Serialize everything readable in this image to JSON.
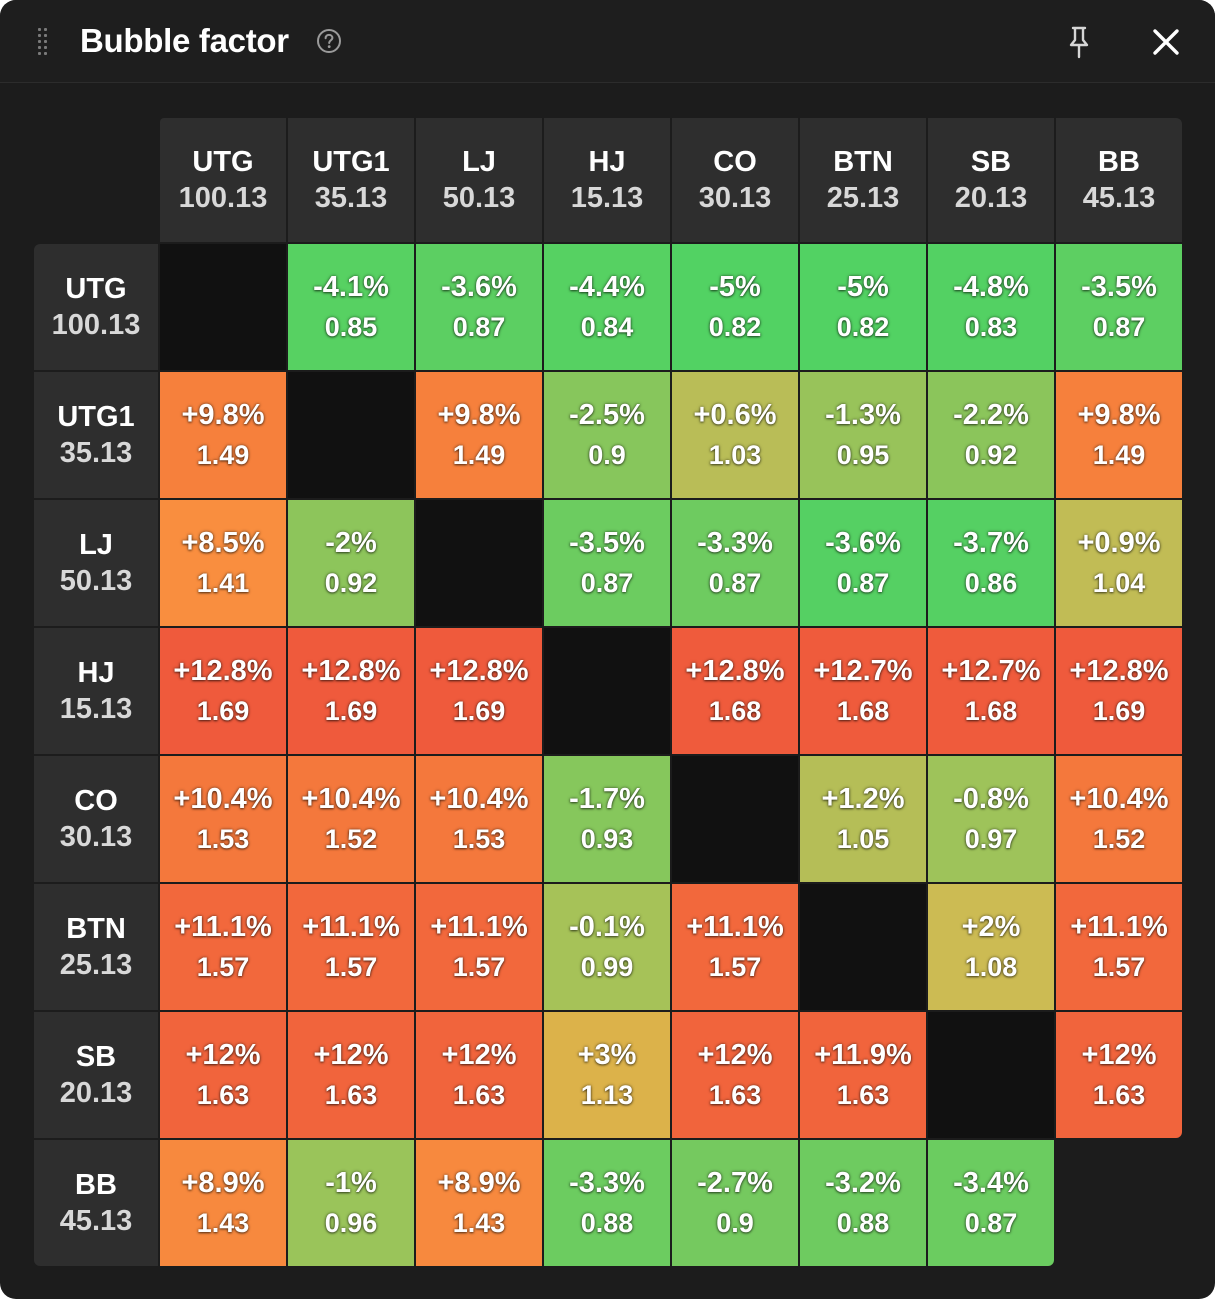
{
  "header": {
    "title": "Bubble factor"
  },
  "columns": [
    {
      "name": "UTG",
      "stack": "100.13"
    },
    {
      "name": "UTG1",
      "stack": "35.13"
    },
    {
      "name": "LJ",
      "stack": "50.13"
    },
    {
      "name": "HJ",
      "stack": "15.13"
    },
    {
      "name": "CO",
      "stack": "30.13"
    },
    {
      "name": "BTN",
      "stack": "25.13"
    },
    {
      "name": "SB",
      "stack": "20.13"
    },
    {
      "name": "BB",
      "stack": "45.13"
    }
  ],
  "rows": [
    {
      "name": "UTG",
      "stack": "100.13",
      "cells": [
        null,
        {
          "pct": "-4.1%",
          "factor": "0.85",
          "color": "#57d162"
        },
        {
          "pct": "-3.6%",
          "factor": "0.87",
          "color": "#5ccf62"
        },
        {
          "pct": "-4.4%",
          "factor": "0.84",
          "color": "#56d162"
        },
        {
          "pct": "-5%",
          "factor": "0.82",
          "color": "#52d263"
        },
        {
          "pct": "-5%",
          "factor": "0.82",
          "color": "#52d263"
        },
        {
          "pct": "-4.8%",
          "factor": "0.83",
          "color": "#53d163"
        },
        {
          "pct": "-3.5%",
          "factor": "0.87",
          "color": "#5dcf62"
        }
      ]
    },
    {
      "name": "UTG1",
      "stack": "35.13",
      "cells": [
        {
          "pct": "+9.8%",
          "factor": "1.49",
          "color": "#f6803c"
        },
        null,
        {
          "pct": "+9.8%",
          "factor": "1.49",
          "color": "#f6803c"
        },
        {
          "pct": "-2.5%",
          "factor": "0.9",
          "color": "#87c65c"
        },
        {
          "pct": "+0.6%",
          "factor": "1.03",
          "color": "#b9bd57"
        },
        {
          "pct": "-1.3%",
          "factor": "0.95",
          "color": "#98c35a"
        },
        {
          "pct": "-2.2%",
          "factor": "0.92",
          "color": "#8bc55b"
        },
        {
          "pct": "+9.8%",
          "factor": "1.49",
          "color": "#f6803c"
        }
      ]
    },
    {
      "name": "LJ",
      "stack": "50.13",
      "cells": [
        {
          "pct": "+8.5%",
          "factor": "1.41",
          "color": "#f98e3f"
        },
        {
          "pct": "-2%",
          "factor": "0.92",
          "color": "#8dc55b"
        },
        null,
        {
          "pct": "-3.5%",
          "factor": "0.87",
          "color": "#6ccc60"
        },
        {
          "pct": "-3.3%",
          "factor": "0.87",
          "color": "#6ecb60"
        },
        {
          "pct": "-3.6%",
          "factor": "0.87",
          "color": "#55d063"
        },
        {
          "pct": "-3.7%",
          "factor": "0.86",
          "color": "#55d063"
        },
        {
          "pct": "+0.9%",
          "factor": "1.04",
          "color": "#c1bc55"
        }
      ]
    },
    {
      "name": "HJ",
      "stack": "15.13",
      "cells": [
        {
          "pct": "+12.8%",
          "factor": "1.69",
          "color": "#ef5a3c"
        },
        {
          "pct": "+12.8%",
          "factor": "1.69",
          "color": "#ef5a3c"
        },
        {
          "pct": "+12.8%",
          "factor": "1.69",
          "color": "#ef5a3c"
        },
        null,
        {
          "pct": "+12.8%",
          "factor": "1.68",
          "color": "#ef5b3c"
        },
        {
          "pct": "+12.7%",
          "factor": "1.68",
          "color": "#ef5b3c"
        },
        {
          "pct": "+12.7%",
          "factor": "1.68",
          "color": "#ef5b3c"
        },
        {
          "pct": "+12.8%",
          "factor": "1.69",
          "color": "#ef5a3c"
        }
      ]
    },
    {
      "name": "CO",
      "stack": "30.13",
      "cells": [
        {
          "pct": "+10.4%",
          "factor": "1.53",
          "color": "#f4783c"
        },
        {
          "pct": "+10.4%",
          "factor": "1.52",
          "color": "#f4783c"
        },
        {
          "pct": "+10.4%",
          "factor": "1.53",
          "color": "#f4783c"
        },
        {
          "pct": "-1.7%",
          "factor": "0.93",
          "color": "#86c75c"
        },
        null,
        {
          "pct": "+1.2%",
          "factor": "1.05",
          "color": "#b5be57"
        },
        {
          "pct": "-0.8%",
          "factor": "0.97",
          "color": "#9ec35a"
        },
        {
          "pct": "+10.4%",
          "factor": "1.52",
          "color": "#f4783c"
        }
      ]
    },
    {
      "name": "BTN",
      "stack": "25.13",
      "cells": [
        {
          "pct": "+11.1%",
          "factor": "1.57",
          "color": "#f2683c"
        },
        {
          "pct": "+11.1%",
          "factor": "1.57",
          "color": "#f2683c"
        },
        {
          "pct": "+11.1%",
          "factor": "1.57",
          "color": "#f2683c"
        },
        {
          "pct": "-0.1%",
          "factor": "0.99",
          "color": "#a6c258"
        },
        {
          "pct": "+11.1%",
          "factor": "1.57",
          "color": "#f2683c"
        },
        null,
        {
          "pct": "+2%",
          "factor": "1.08",
          "color": "#ccbb53"
        },
        {
          "pct": "+11.1%",
          "factor": "1.57",
          "color": "#f2683c"
        }
      ]
    },
    {
      "name": "SB",
      "stack": "20.13",
      "cells": [
        {
          "pct": "+12%",
          "factor": "1.63",
          "color": "#f1643c"
        },
        {
          "pct": "+12%",
          "factor": "1.63",
          "color": "#f1643c"
        },
        {
          "pct": "+12%",
          "factor": "1.63",
          "color": "#f1643c"
        },
        {
          "pct": "+3%",
          "factor": "1.13",
          "color": "#dcb24a"
        },
        {
          "pct": "+12%",
          "factor": "1.63",
          "color": "#f1643c"
        },
        {
          "pct": "+11.9%",
          "factor": "1.63",
          "color": "#f1643c"
        },
        null,
        {
          "pct": "+12%",
          "factor": "1.63",
          "color": "#f1643c"
        }
      ]
    },
    {
      "name": "BB",
      "stack": "45.13",
      "cells": [
        {
          "pct": "+8.9%",
          "factor": "1.43",
          "color": "#f7893e"
        },
        {
          "pct": "-1%",
          "factor": "0.96",
          "color": "#9ac45a"
        },
        {
          "pct": "+8.9%",
          "factor": "1.43",
          "color": "#f7893e"
        },
        {
          "pct": "-3.3%",
          "factor": "0.88",
          "color": "#6ccc60"
        },
        {
          "pct": "-2.7%",
          "factor": "0.9",
          "color": "#75c95f"
        },
        {
          "pct": "-3.2%",
          "factor": "0.88",
          "color": "#6ecb60"
        },
        {
          "pct": "-3.4%",
          "factor": "0.87",
          "color": "#6bcc60"
        },
        null
      ]
    }
  ],
  "icons": {
    "drag": "drag-handle-icon",
    "help": "help-circle-icon",
    "pin": "pin-icon",
    "close": "close-icon"
  }
}
